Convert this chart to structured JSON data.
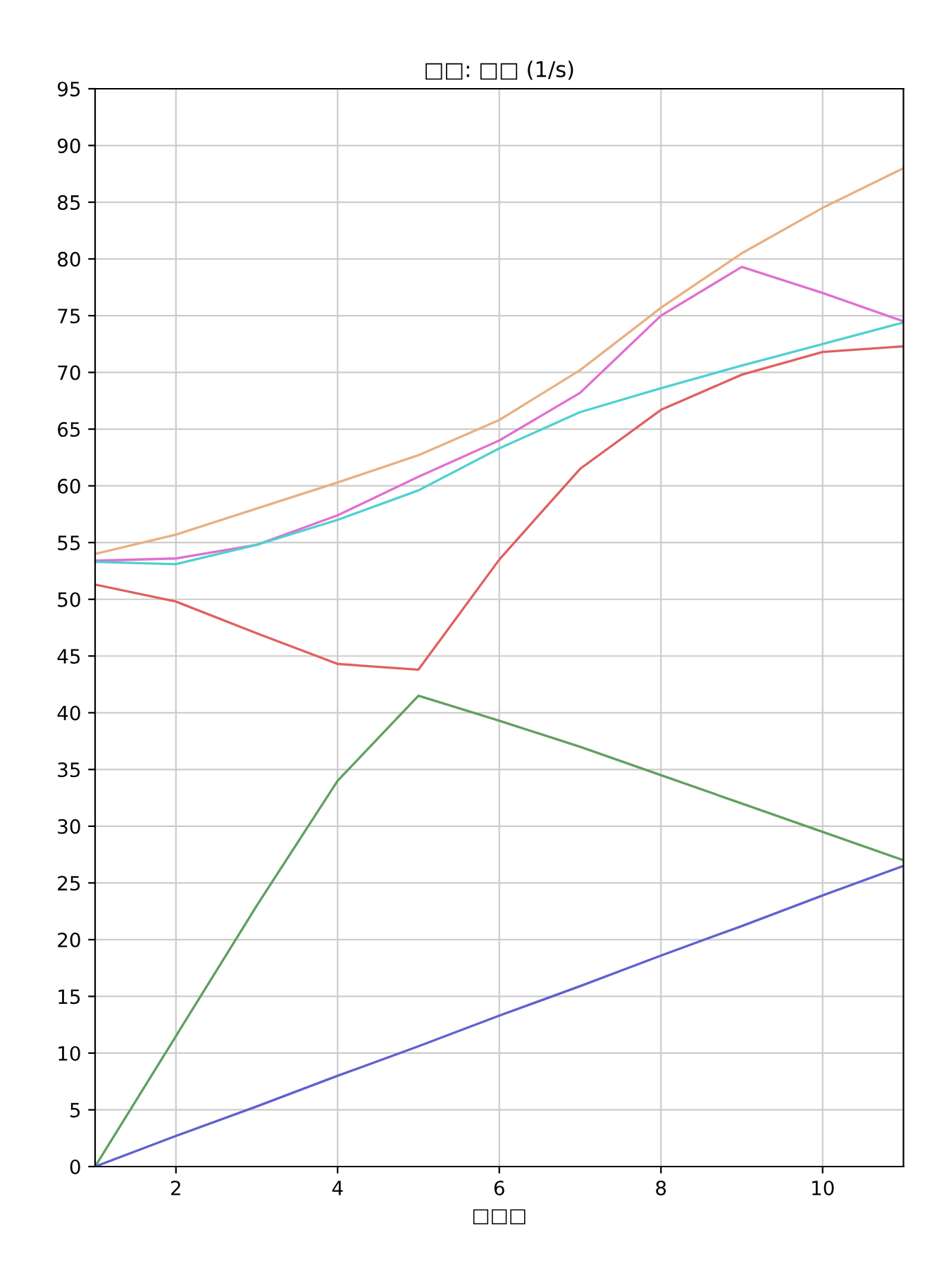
{
  "chart_data": {
    "type": "line",
    "title": "□□: □□ (1/s)",
    "xlabel": "□□□",
    "x": [
      1,
      2,
      3,
      4,
      5,
      6,
      7,
      8,
      9,
      10,
      11
    ],
    "series": [
      {
        "color": "#e8b080",
        "values": [
          54,
          55.7,
          58,
          60.3,
          62.7,
          65.8,
          70.2,
          75.7,
          80.5,
          84.5,
          88
        ]
      },
      {
        "color": "#e070d0",
        "values": [
          53.4,
          53.6,
          54.8,
          57.4,
          60.8,
          64,
          68.2,
          75,
          79.3,
          77,
          74.5
        ]
      },
      {
        "color": "#50d0d0",
        "values": [
          53.3,
          53.1,
          54.8,
          57,
          59.6,
          63.3,
          66.5,
          68.6,
          70.6,
          72.5,
          74.4
        ]
      },
      {
        "color": "#e06060",
        "values": [
          51.3,
          49.8,
          47,
          44.3,
          43.8,
          53.5,
          61.5,
          66.7,
          69.8,
          71.8,
          72.3
        ]
      },
      {
        "color": "#60a060",
        "values": [
          0,
          11.5,
          23,
          34,
          41.5,
          39.3,
          37,
          34.5,
          32,
          29.5,
          27
        ]
      },
      {
        "color": "#6060d0",
        "values": [
          0,
          2.7,
          5.3,
          8,
          10.6,
          13.3,
          15.9,
          18.6,
          21.2,
          23.9,
          26.5
        ]
      }
    ],
    "xlim": [
      1,
      11
    ],
    "ylim": [
      0,
      95
    ],
    "xticks": [
      2,
      4,
      6,
      8,
      10
    ],
    "yticks": [
      0,
      5,
      10,
      15,
      20,
      25,
      30,
      35,
      40,
      45,
      50,
      55,
      60,
      65,
      70,
      75,
      80,
      85,
      90,
      95
    ],
    "grid": true,
    "legend": false,
    "marker": "none",
    "line_style": "solid"
  }
}
